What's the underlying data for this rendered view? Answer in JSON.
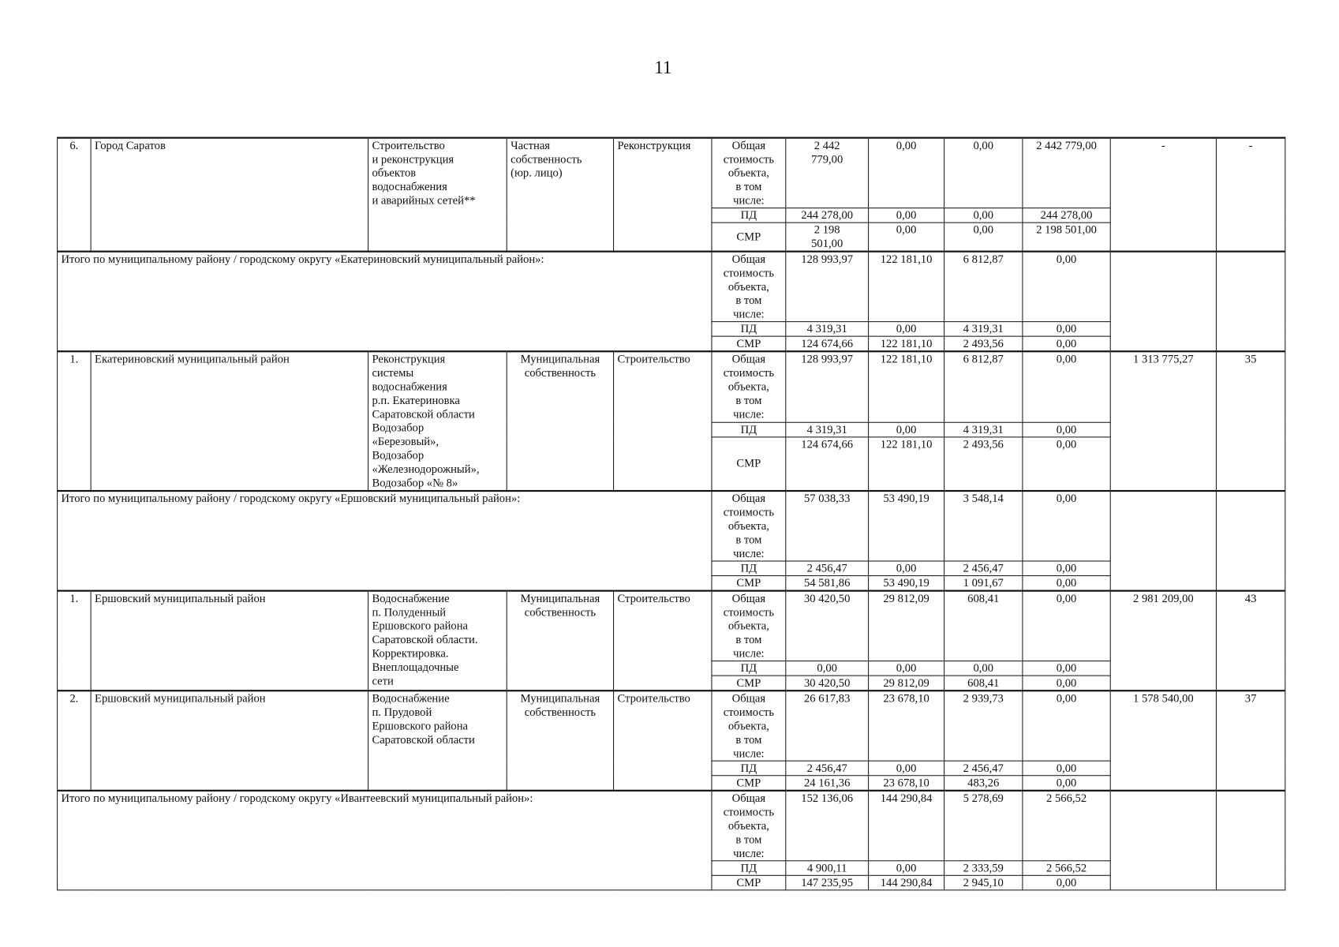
{
  "page_number": "11",
  "groups": [
    {
      "type": "item",
      "num": "6.",
      "name": "Город Саратов",
      "object": "Строительство\nи реконструкция\nобъектов\nводоснабжения\nи аварийных сетей**",
      "ownership": "Частная\nсобственность\n(юр. лицо)",
      "work_type": "Реконструкция",
      "cost": "-",
      "term": "-",
      "rows": [
        {
          "label": "Общая\nстоимость\nобъекта,\nв том\nчисле:",
          "values": [
            "2 442\n779,00",
            "0,00",
            "0,00",
            "2 442 779,00"
          ]
        },
        {
          "label": "ПД",
          "values": [
            "244 278,00",
            "0,00",
            "0,00",
            "244 278,00"
          ]
        },
        {
          "label": "СМР",
          "values": [
            "2 198\n501,00",
            "0,00",
            "0,00",
            "2 198 501,00"
          ]
        }
      ]
    },
    {
      "type": "total",
      "label": "Итого  по муниципальному району / городскому округу «Екатериновский муниципальный район»:",
      "rows": [
        {
          "label": "Общая\nстоимость\nобъекта,\nв том\nчисле:",
          "values": [
            "128 993,97",
            "122 181,10",
            "6 812,87",
            "0,00"
          ]
        },
        {
          "label": "ПД",
          "values": [
            "4 319,31",
            "0,00",
            "4 319,31",
            "0,00"
          ]
        },
        {
          "label": "СМР",
          "values": [
            "124 674,66",
            "122 181,10",
            "2 493,56",
            "0,00"
          ]
        }
      ]
    },
    {
      "type": "item",
      "num": "1.",
      "name": "Екатериновский муниципальный район",
      "object": "Реконструкция\nсистемы\nводоснабжения\nр.п. Екатериновка\nСаратовской области\nВодозабор\n«Березовый»,\nВодозабор\n«Железнодорожный»,\nВодозабор «№ 8»",
      "ownership": "Муниципальная\nсобственность",
      "work_type": "Строительство",
      "cost": "1 313 775,27",
      "term": "35",
      "rows": [
        {
          "label": "Общая\nстоимость\nобъекта,\nв том\nчисле:",
          "values": [
            "128 993,97",
            "122 181,10",
            "6 812,87",
            "0,00"
          ]
        },
        {
          "label": "ПД",
          "values": [
            "4 319,31",
            "0,00",
            "4 319,31",
            "0,00"
          ]
        },
        {
          "label": "СМР",
          "values": [
            "124 674,66",
            "122 181,10",
            "2 493,56",
            "0,00"
          ]
        }
      ]
    },
    {
      "type": "total",
      "label": "Итого  по муниципальному району / городскому округу «Ершовский муниципальный район»:",
      "rows": [
        {
          "label": "Общая\nстоимость\nобъекта,\nв том\nчисле:",
          "values": [
            "57 038,33",
            "53 490,19",
            "3 548,14",
            "0,00"
          ]
        },
        {
          "label": "ПД",
          "values": [
            "2 456,47",
            "0,00",
            "2 456,47",
            "0,00"
          ]
        },
        {
          "label": "СМР",
          "values": [
            "54 581,86",
            "53 490,19",
            "1 091,67",
            "0,00"
          ]
        }
      ]
    },
    {
      "type": "item",
      "num": "1.",
      "name": "Ершовский муниципальный район",
      "object": "Водоснабжение\nп. Полуденный\nЕршовского района\nСаратовской области.\nКорректировка.\nВнеплощадочные\nсети",
      "ownership": "Муниципальная\nсобственность",
      "work_type": "Строительство",
      "cost": "2 981 209,00",
      "term": "43",
      "rows": [
        {
          "label": "Общая\nстоимость\nобъекта,\nв том\nчисле:",
          "values": [
            "30 420,50",
            "29 812,09",
            "608,41",
            "0,00"
          ]
        },
        {
          "label": "ПД",
          "values": [
            "0,00",
            "0,00",
            "0,00",
            "0,00"
          ]
        },
        {
          "label": "СМР",
          "values": [
            "30 420,50",
            "29 812,09",
            "608,41",
            "0,00"
          ]
        }
      ]
    },
    {
      "type": "item",
      "num": "2.",
      "name": "Ершовский муниципальный район",
      "object": "Водоснабжение\nп. Прудовой\nЕршовского района\nСаратовской области",
      "ownership": "Муниципальная\nсобственность",
      "work_type": "Строительство",
      "cost": "1 578 540,00",
      "term": "37",
      "rows": [
        {
          "label": "Общая\nстоимость\nобъекта,\nв том\nчисле:",
          "values": [
            "26 617,83",
            "23 678,10",
            "2 939,73",
            "0,00"
          ]
        },
        {
          "label": "ПД",
          "values": [
            "2 456,47",
            "0,00",
            "2 456,47",
            "0,00"
          ]
        },
        {
          "label": "СМР",
          "values": [
            "24 161,36",
            "23 678,10",
            "483,26",
            "0,00"
          ]
        }
      ]
    },
    {
      "type": "total",
      "label": "Итого  по муниципальному району / городскому округу «Ивантеевский муниципальный район»:",
      "rows": [
        {
          "label": "Общая\nстоимость\nобъекта,\nв том\nчисле:",
          "values": [
            "152 136,06",
            "144 290,84",
            "5 278,69",
            "2 566,52"
          ]
        },
        {
          "label": "ПД",
          "values": [
            "4 900,11",
            "0,00",
            "2 333,59",
            "2 566,52"
          ]
        },
        {
          "label": "СМР",
          "values": [
            "147 235,95",
            "144 290,84",
            "2 945,10",
            "0,00"
          ]
        }
      ]
    }
  ]
}
